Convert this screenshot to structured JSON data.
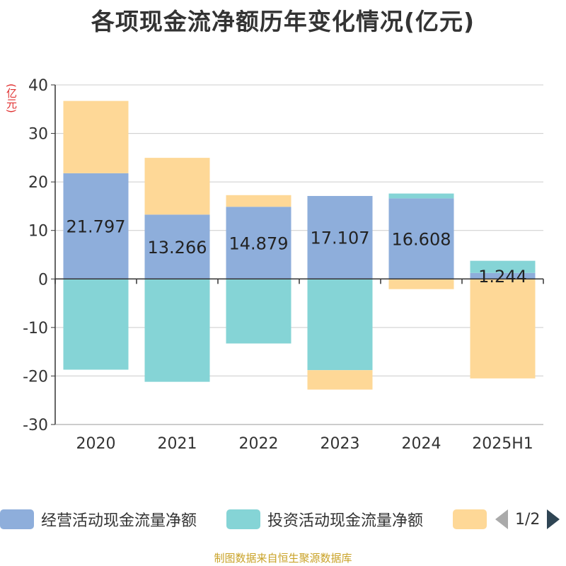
{
  "title": "各项现金流净额历年变化情况(亿元)",
  "unit_label": "(亿元)",
  "source": "制图数据来自恒生聚源数据库",
  "legend": {
    "items": [
      {
        "label": "经营活动现金流量净额",
        "color": "#8eaedb"
      },
      {
        "label": "投资活动现金流量净额",
        "color": "#85d4d6"
      },
      {
        "label": "",
        "color": "#fed897"
      }
    ],
    "page_indicator": "1/2"
  },
  "chart_data": {
    "type": "bar",
    "stacked": true,
    "categories": [
      "2020",
      "2021",
      "2022",
      "2023",
      "2024",
      "2025H1"
    ],
    "series": [
      {
        "name": "经营活动现金流量净额",
        "color": "#8eaedb",
        "values": [
          21.797,
          13.266,
          14.879,
          17.107,
          16.608,
          1.244
        ],
        "labels": [
          "21.797",
          "13.266",
          "14.879",
          "17.107",
          "16.608",
          "1.244"
        ]
      },
      {
        "name": "投资活动现金流量净额",
        "color": "#85d4d6",
        "values": [
          -18.7,
          -21.2,
          -13.3,
          -18.8,
          1.0,
          2.5
        ]
      },
      {
        "name": "",
        "color": "#fed897",
        "values": [
          14.9,
          11.7,
          2.4,
          -4.0,
          -2.1,
          -20.5
        ]
      }
    ],
    "ylim": [
      -30,
      40
    ],
    "yticks": [
      40,
      30,
      20,
      10,
      0,
      -10,
      -20,
      -30
    ],
    "grid": true
  }
}
